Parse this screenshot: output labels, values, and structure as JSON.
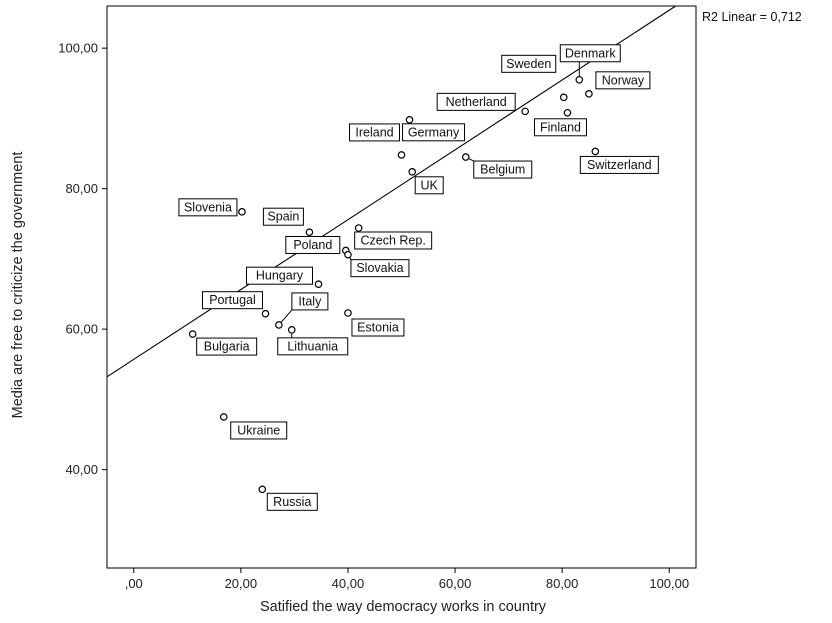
{
  "chart_data": {
    "type": "scatter",
    "xlabel": "Satified the way democracy works in country",
    "ylabel": "Media are free to criticize the government",
    "xlim": [
      -5,
      105
    ],
    "ylim": [
      26,
      106
    ],
    "x_ticks": [
      {
        "value": 0,
        "label": ",00"
      },
      {
        "value": 20,
        "label": "20,00"
      },
      {
        "value": 40,
        "label": "40,00"
      },
      {
        "value": 60,
        "label": "60,00"
      },
      {
        "value": 80,
        "label": "80,00"
      },
      {
        "value": 100,
        "label": "100,00"
      }
    ],
    "y_ticks": [
      {
        "value": 40,
        "label": "40,00"
      },
      {
        "value": 60,
        "label": "60,00"
      },
      {
        "value": 80,
        "label": "80,00"
      },
      {
        "value": 100,
        "label": "100,00"
      }
    ],
    "fit_line": {
      "label": "R2 Linear = 0,712",
      "intercept": 55.7,
      "slope": 0.497
    },
    "points": [
      {
        "label": "Denmark",
        "x": 83.2,
        "y": 95.5
      },
      {
        "label": "Sweden",
        "x": 80.3,
        "y": 93.0
      },
      {
        "label": "Norway",
        "x": 85.0,
        "y": 93.5
      },
      {
        "label": "Netherland",
        "x": 73.1,
        "y": 91.0
      },
      {
        "label": "Finland",
        "x": 81.0,
        "y": 90.8
      },
      {
        "label": "Switzerland",
        "x": 86.2,
        "y": 85.3
      },
      {
        "label": "Germany",
        "x": 51.5,
        "y": 89.8
      },
      {
        "label": "Ireland",
        "x": 50.0,
        "y": 84.8
      },
      {
        "label": "Belgium",
        "x": 62.0,
        "y": 84.5
      },
      {
        "label": "UK",
        "x": 52.0,
        "y": 82.4
      },
      {
        "label": "Slovenia",
        "x": 20.2,
        "y": 76.7
      },
      {
        "label": "Spain",
        "x": 32.8,
        "y": 73.8
      },
      {
        "label": "Czech Rep.",
        "x": 42.0,
        "y": 74.4
      },
      {
        "label": "Poland",
        "x": 39.6,
        "y": 71.2
      },
      {
        "label": "Slovakia",
        "x": 40.0,
        "y": 70.6
      },
      {
        "label": "Hungary",
        "x": 34.5,
        "y": 66.4
      },
      {
        "label": "Portugal",
        "x": 24.6,
        "y": 62.2
      },
      {
        "label": "Italy",
        "x": 27.1,
        "y": 60.6
      },
      {
        "label": "Lithuania",
        "x": 29.5,
        "y": 59.9
      },
      {
        "label": "Estonia",
        "x": 40.0,
        "y": 62.3
      },
      {
        "label": "Bulgaria",
        "x": 11.0,
        "y": 59.3
      },
      {
        "label": "Ukraine",
        "x": 16.8,
        "y": 47.5
      },
      {
        "label": "Russia",
        "x": 24.0,
        "y": 37.2
      }
    ]
  }
}
